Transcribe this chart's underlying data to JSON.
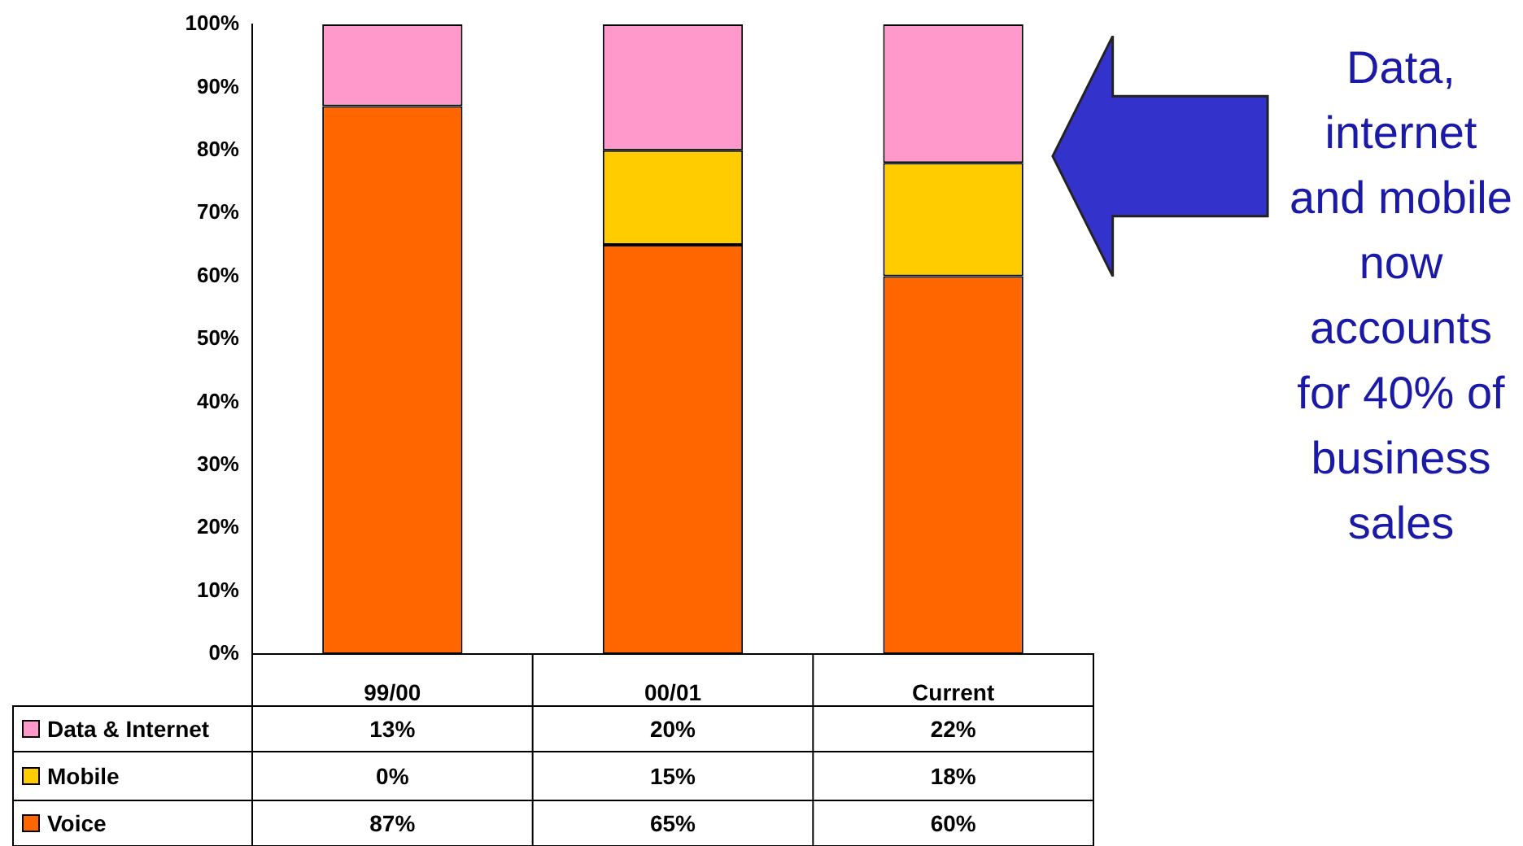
{
  "chart_data": {
    "type": "bar",
    "stacked": true,
    "categories": [
      "99/00",
      "00/01",
      "Current"
    ],
    "series": [
      {
        "name": "Voice",
        "color": "#ff6600",
        "values": [
          87,
          65,
          60
        ],
        "value_labels": [
          "87%",
          "65%",
          "60%"
        ]
      },
      {
        "name": "Mobile",
        "color": "#ffcc00",
        "values": [
          0,
          15,
          18
        ],
        "value_labels": [
          "0%",
          "15%",
          "18%"
        ]
      },
      {
        "name": "Data & Internet",
        "color": "#ff99cc",
        "values": [
          13,
          20,
          22
        ],
        "value_labels": [
          "13%",
          "20%",
          "22%"
        ]
      }
    ],
    "ylim": [
      0,
      100
    ],
    "yticks": [
      {
        "value": 0,
        "label": "0%"
      },
      {
        "value": 10,
        "label": "10%"
      },
      {
        "value": 20,
        "label": "20%"
      },
      {
        "value": 30,
        "label": "30%"
      },
      {
        "value": 40,
        "label": "40%"
      },
      {
        "value": 50,
        "label": "50%"
      },
      {
        "value": 60,
        "label": "60%"
      },
      {
        "value": 70,
        "label": "70%"
      },
      {
        "value": 80,
        "label": "80%"
      },
      {
        "value": 90,
        "label": "90%"
      },
      {
        "value": 100,
        "label": "100%"
      }
    ],
    "grid": false,
    "legend": "bottom left",
    "annotations": [
      "Data, internet and mobile now accounts for 40% of business sales"
    ]
  }
}
